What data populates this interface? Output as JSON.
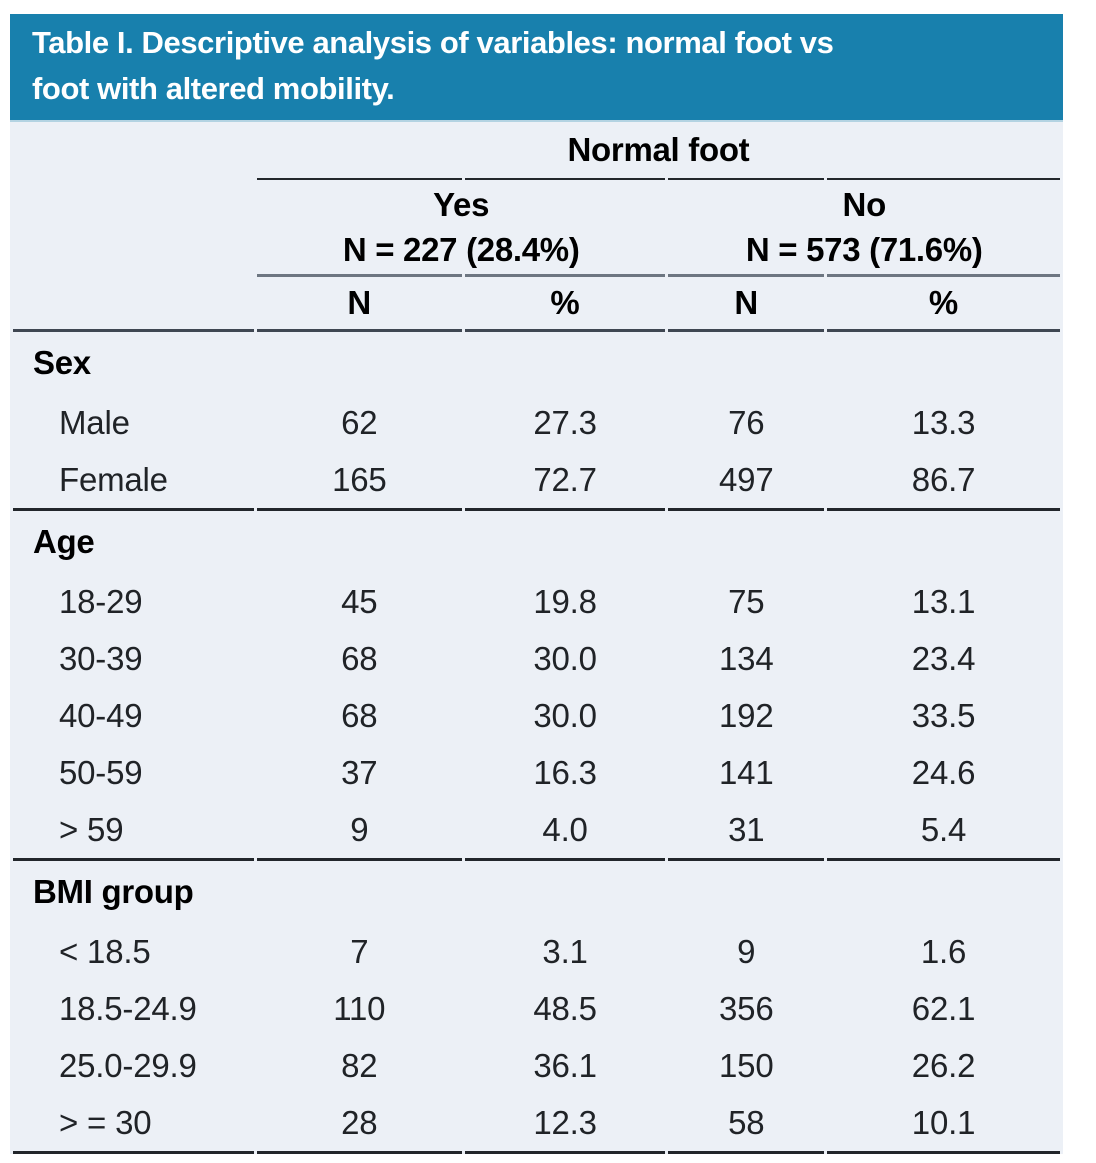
{
  "title": {
    "line1": "Table I. Descriptive analysis of variables: normal foot vs",
    "line2": "foot with altered mobility."
  },
  "colors": {
    "banner_bg": "#1880ad",
    "banner_edge": "#b3d3e2",
    "table_bg": "#ecf0f6",
    "rule_thin": "#23272c",
    "rule_gray": "#6d7681",
    "rule_mid": "#3f4752",
    "rule_heavy": "#22262b",
    "text_dark": "#202327"
  },
  "table": {
    "span_header": "Normal foot",
    "groups": [
      {
        "label": "Yes",
        "sub": "N = 227 (28.4%)"
      },
      {
        "label": "No",
        "sub": "N = 573 (71.6%)"
      }
    ],
    "col_headers": [
      "N",
      "%",
      "N",
      "%"
    ],
    "sections": [
      {
        "label": "Sex",
        "rows": [
          {
            "label": "Male",
            "values": [
              "62",
              "27.3",
              "76",
              "13.3"
            ]
          },
          {
            "label": "Female",
            "values": [
              "165",
              "72.7",
              "497",
              "86.7"
            ]
          }
        ]
      },
      {
        "label": "Age",
        "rows": [
          {
            "label": "18-29",
            "values": [
              "45",
              "19.8",
              "75",
              "13.1"
            ]
          },
          {
            "label": "30-39",
            "values": [
              "68",
              "30.0",
              "134",
              "23.4"
            ]
          },
          {
            "label": "40-49",
            "values": [
              "68",
              "30.0",
              "192",
              "33.5"
            ]
          },
          {
            "label": "50-59",
            "values": [
              "37",
              "16.3",
              "141",
              "24.6"
            ]
          },
          {
            "label": "> 59",
            "values": [
              "9",
              "4.0",
              "31",
              "5.4"
            ]
          }
        ]
      },
      {
        "label": "BMI group",
        "rows": [
          {
            "label": "< 18.5",
            "values": [
              "7",
              "3.1",
              "9",
              "1.6"
            ]
          },
          {
            "label": "18.5-24.9",
            "values": [
              "110",
              "48.5",
              "356",
              "62.1"
            ]
          },
          {
            "label": "25.0-29.9",
            "values": [
              "82",
              "36.1",
              "150",
              "26.2"
            ]
          },
          {
            "label": "> = 30",
            "values": [
              "28",
              "12.3",
              "58",
              "10.1"
            ]
          }
        ]
      }
    ]
  }
}
